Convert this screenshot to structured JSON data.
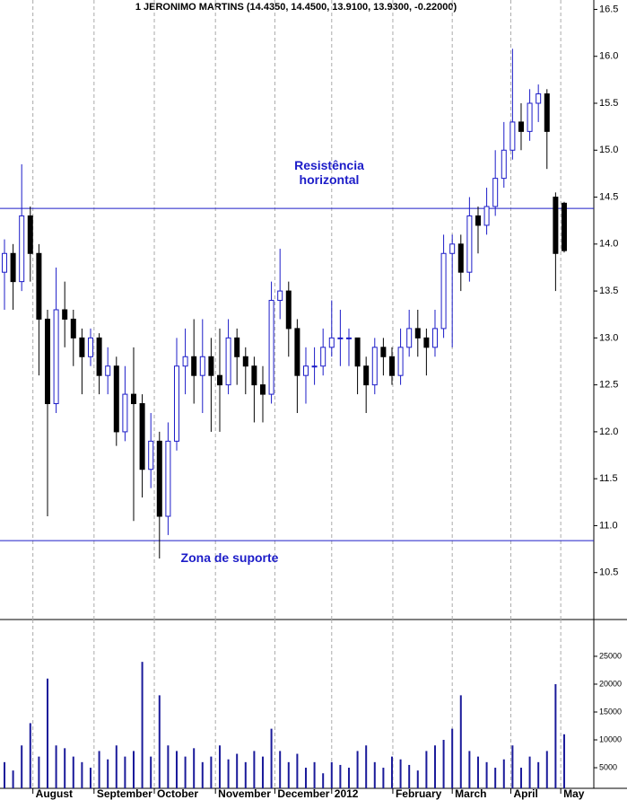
{
  "chart_data": [
    {
      "type": "candlestick",
      "title": "1 JERONIMO MARTINS (14.4350, 14.4500, 13.9100, 13.9300, -0.22000)",
      "open": [
        13.7,
        13.9,
        13.6,
        14.3,
        13.9,
        13.2,
        12.3,
        13.3,
        13.2,
        13.0,
        12.8,
        13.0,
        12.6,
        12.7,
        12.0,
        12.4,
        12.3,
        11.6,
        11.9,
        11.1,
        11.9,
        12.7,
        12.8,
        12.6,
        12.8,
        12.6,
        12.5,
        13.0,
        12.8,
        12.7,
        12.5,
        12.4,
        13.4,
        13.5,
        13.1,
        12.6,
        12.7,
        12.7,
        12.9,
        13.0,
        13.0,
        13.0,
        12.7,
        12.5,
        12.9,
        12.8,
        12.6,
        12.9,
        13.1,
        13.0,
        12.9,
        13.1,
        13.9,
        14.0,
        13.7,
        14.3,
        14.2,
        14.4,
        14.7,
        15.0,
        15.3,
        15.2,
        15.5,
        15.6,
        14.5,
        14.435
      ],
      "high": [
        14.05,
        14.0,
        14.85,
        14.4,
        14.0,
        13.3,
        13.75,
        13.6,
        13.3,
        13.1,
        13.1,
        13.05,
        12.9,
        12.8,
        12.7,
        12.9,
        12.4,
        12.2,
        12.0,
        12.1,
        13.0,
        13.1,
        13.2,
        13.2,
        13.0,
        13.1,
        13.2,
        13.1,
        12.9,
        12.8,
        12.7,
        13.6,
        13.95,
        13.6,
        13.2,
        12.9,
        12.9,
        13.1,
        13.4,
        13.3,
        13.1,
        13.0,
        12.8,
        13.0,
        13.0,
        12.9,
        13.1,
        13.3,
        13.3,
        13.1,
        13.3,
        14.1,
        14.1,
        14.1,
        14.5,
        14.4,
        14.6,
        15.0,
        15.3,
        16.08,
        15.5,
        15.65,
        15.7,
        15.65,
        14.55,
        14.45
      ],
      "low": [
        13.3,
        13.3,
        13.5,
        13.6,
        12.6,
        11.1,
        12.2,
        12.9,
        12.7,
        12.4,
        12.7,
        12.4,
        12.4,
        11.85,
        11.9,
        11.05,
        11.3,
        11.4,
        10.65,
        10.9,
        11.8,
        12.4,
        12.3,
        12.2,
        12.0,
        12.0,
        12.4,
        12.5,
        12.4,
        12.1,
        12.1,
        12.3,
        13.2,
        12.8,
        12.2,
        12.3,
        12.5,
        12.6,
        12.8,
        12.7,
        12.7,
        12.4,
        12.2,
        12.4,
        12.6,
        12.5,
        12.5,
        12.8,
        12.8,
        12.6,
        12.8,
        13.0,
        12.9,
        13.5,
        13.6,
        13.9,
        14.1,
        14.3,
        14.6,
        14.9,
        15.0,
        15.1,
        15.3,
        14.8,
        13.5,
        13.91
      ],
      "close": [
        13.9,
        13.6,
        14.3,
        13.9,
        13.2,
        12.3,
        13.3,
        13.2,
        13.0,
        12.8,
        13.0,
        12.6,
        12.7,
        12.0,
        12.4,
        12.3,
        11.6,
        11.9,
        11.1,
        11.9,
        12.7,
        12.8,
        12.6,
        12.8,
        12.6,
        12.5,
        13.0,
        12.8,
        12.7,
        12.5,
        12.4,
        13.4,
        13.5,
        13.1,
        12.6,
        12.7,
        12.7,
        12.9,
        13.0,
        13.0,
        13.0,
        12.7,
        12.5,
        12.9,
        12.8,
        12.6,
        12.9,
        13.1,
        13.0,
        12.9,
        13.1,
        13.9,
        14.0,
        13.7,
        14.3,
        14.2,
        14.4,
        14.7,
        15.0,
        15.3,
        15.2,
        15.5,
        15.6,
        15.2,
        13.9,
        13.93
      ],
      "up_color": "#1c1cc8",
      "down_color": "#000000",
      "xlim": [
        -0.52,
        68.44
      ],
      "xticks": [
        {
          "value": 3.3,
          "label": "August"
        },
        {
          "value": 10.4,
          "label": "September"
        },
        {
          "value": 17.4,
          "label": "October"
        },
        {
          "value": 24.5,
          "label": "November"
        },
        {
          "value": 31.4,
          "label": "December"
        },
        {
          "value": 38.0,
          "label": "2012"
        },
        {
          "value": 45.1,
          "label": "February"
        },
        {
          "value": 52.0,
          "label": "March"
        },
        {
          "value": 58.8,
          "label": "April"
        },
        {
          "value": 64.6,
          "label": "May"
        }
      ],
      "ylim": [
        10.0,
        16.6
      ],
      "yticks": [
        10.5,
        {
          "value": 11,
          "label": "11.0"
        },
        11.5,
        {
          "value": 12,
          "label": "12.0"
        },
        12.5,
        {
          "value": 13,
          "label": "13.0"
        },
        13.5,
        {
          "value": 14,
          "label": "14.0"
        },
        14.5,
        {
          "value": 15,
          "label": "15.0"
        },
        15.5,
        {
          "value": 16,
          "label": "16.0"
        },
        16.5
      ],
      "hlines": [
        {
          "value": 14.38,
          "text": [
            "Resistência",
            "horizontal"
          ]
        },
        {
          "value": 10.84,
          "text": [
            "Zona de suporte"
          ]
        }
      ],
      "line_color": "#1c1cc8",
      "grid": true
    },
    {
      "type": "bar",
      "values": [
        6000,
        4500,
        9000,
        13000,
        7000,
        21000,
        9000,
        8500,
        7000,
        6000,
        5000,
        8000,
        6500,
        9000,
        7000,
        8000,
        24000,
        7000,
        18000,
        9000,
        8000,
        7000,
        8500,
        6000,
        7000,
        9000,
        6500,
        7500,
        6000,
        8000,
        7000,
        12000,
        8000,
        6000,
        7500,
        5000,
        6000,
        4000,
        6000,
        5500,
        5000,
        8000,
        9000,
        6000,
        5000,
        7000,
        6500,
        5500,
        4500,
        8000,
        9000,
        10000,
        12000,
        18000,
        8000,
        7000,
        6000,
        5000,
        6500,
        9000,
        5000,
        7000,
        6000,
        8000,
        20000,
        11000
      ],
      "color": "#1a1a9a",
      "ylim": [
        1300,
        31600
      ],
      "yticks": [
        5000,
        10000,
        15000,
        20000,
        25000
      ]
    }
  ]
}
